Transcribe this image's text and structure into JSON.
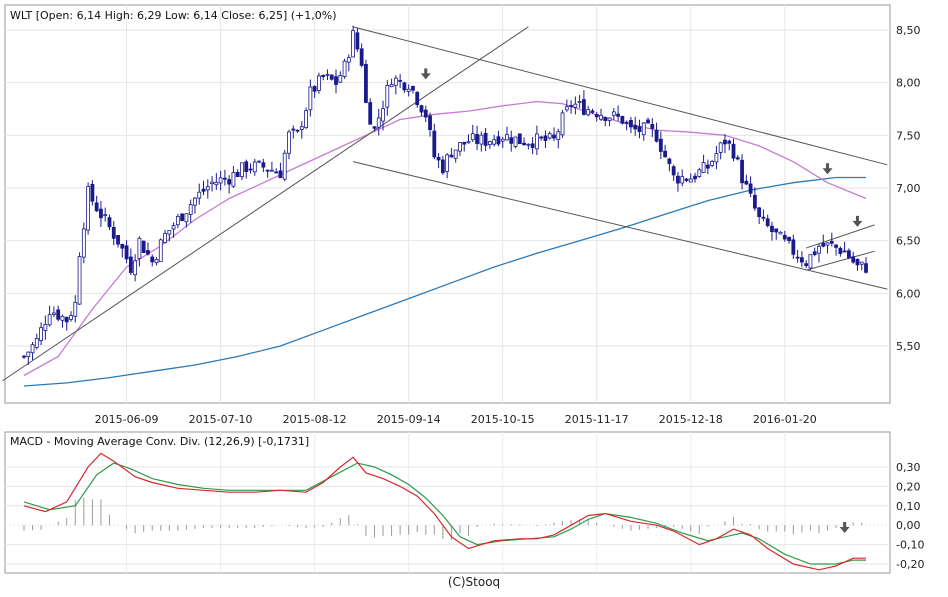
{
  "footer": "(C)Stooq",
  "chart_data": [
    {
      "type": "candlestick",
      "title": "WLT [Open: 6,14  High: 6,29  Low: 6,14  Close: 6,25] (+1,0%)",
      "ylim": [
        5.2,
        8.6
      ],
      "ytick_labels": [
        "8,50",
        "8,00",
        "7,50",
        "7,00",
        "6,50",
        "6,00",
        "5,50"
      ],
      "ytick_values": [
        8.5,
        8.0,
        7.5,
        7.0,
        6.5,
        6.0,
        5.5
      ],
      "xtick_labels": [
        "2015-06-09",
        "2015-07-10",
        "2015-08-12",
        "2015-09-14",
        "2015-10-15",
        "2015-11-17",
        "2015-12-18",
        "2016-01-20"
      ],
      "xtick_positions": [
        24,
        46,
        68,
        90,
        112,
        134,
        156,
        178
      ],
      "x_count": 198,
      "grid": true,
      "anchors": [
        [
          0,
          5.4
        ],
        [
          3,
          5.55
        ],
        [
          6,
          5.85
        ],
        [
          10,
          5.75
        ],
        [
          12,
          5.9
        ],
        [
          13,
          6.4
        ],
        [
          15,
          6.95
        ],
        [
          18,
          6.75
        ],
        [
          22,
          6.5
        ],
        [
          25,
          6.25
        ],
        [
          27,
          6.5
        ],
        [
          30,
          6.3
        ],
        [
          33,
          6.55
        ],
        [
          36,
          6.7
        ],
        [
          40,
          6.9
        ],
        [
          44,
          7.05
        ],
        [
          48,
          7.1
        ],
        [
          52,
          7.2
        ],
        [
          56,
          7.2
        ],
        [
          60,
          7.15
        ],
        [
          62,
          7.5
        ],
        [
          64,
          7.5
        ],
        [
          67,
          7.9
        ],
        [
          70,
          8.05
        ],
        [
          73,
          8.0
        ],
        [
          75,
          8.15
        ],
        [
          77,
          8.45
        ],
        [
          79,
          8.2
        ],
        [
          80,
          7.8
        ],
        [
          82,
          7.55
        ],
        [
          84,
          7.8
        ],
        [
          86,
          8.05
        ],
        [
          88,
          8.0
        ],
        [
          90,
          8.0
        ],
        [
          92,
          7.85
        ],
        [
          94,
          7.7
        ],
        [
          96,
          7.3
        ],
        [
          98,
          7.2
        ],
        [
          100,
          7.35
        ],
        [
          104,
          7.45
        ],
        [
          108,
          7.45
        ],
        [
          112,
          7.5
        ],
        [
          116,
          7.45
        ],
        [
          120,
          7.45
        ],
        [
          124,
          7.45
        ],
        [
          126,
          7.65
        ],
        [
          128,
          7.8
        ],
        [
          132,
          7.75
        ],
        [
          136,
          7.7
        ],
        [
          140,
          7.65
        ],
        [
          142,
          7.55
        ],
        [
          146,
          7.55
        ],
        [
          148,
          7.5
        ],
        [
          150,
          7.3
        ],
        [
          152,
          7.1
        ],
        [
          156,
          7.1
        ],
        [
          160,
          7.2
        ],
        [
          164,
          7.45
        ],
        [
          166,
          7.35
        ],
        [
          168,
          7.1
        ],
        [
          170,
          6.9
        ],
        [
          172,
          6.7
        ],
        [
          176,
          6.55
        ],
        [
          180,
          6.4
        ],
        [
          183,
          6.3
        ],
        [
          186,
          6.45
        ],
        [
          189,
          6.45
        ],
        [
          192,
          6.4
        ],
        [
          195,
          6.25
        ],
        [
          197,
          6.25
        ]
      ],
      "ma_short": [
        [
          0,
          5.22
        ],
        [
          8,
          5.4
        ],
        [
          16,
          5.85
        ],
        [
          24,
          6.25
        ],
        [
          32,
          6.45
        ],
        [
          40,
          6.7
        ],
        [
          48,
          6.9
        ],
        [
          56,
          7.05
        ],
        [
          64,
          7.2
        ],
        [
          72,
          7.35
        ],
        [
          80,
          7.5
        ],
        [
          88,
          7.65
        ],
        [
          96,
          7.7
        ],
        [
          104,
          7.73
        ],
        [
          112,
          7.78
        ],
        [
          120,
          7.82
        ],
        [
          126,
          7.8
        ],
        [
          132,
          7.72
        ],
        [
          140,
          7.62
        ],
        [
          148,
          7.55
        ],
        [
          156,
          7.53
        ],
        [
          164,
          7.5
        ],
        [
          172,
          7.4
        ],
        [
          180,
          7.25
        ],
        [
          188,
          7.05
        ],
        [
          197,
          6.9
        ]
      ],
      "ma_long": [
        [
          0,
          5.12
        ],
        [
          10,
          5.15
        ],
        [
          20,
          5.2
        ],
        [
          30,
          5.26
        ],
        [
          40,
          5.32
        ],
        [
          50,
          5.4
        ],
        [
          60,
          5.5
        ],
        [
          70,
          5.65
        ],
        [
          80,
          5.8
        ],
        [
          90,
          5.95
        ],
        [
          100,
          6.1
        ],
        [
          110,
          6.25
        ],
        [
          120,
          6.38
        ],
        [
          130,
          6.5
        ],
        [
          140,
          6.62
        ],
        [
          150,
          6.75
        ],
        [
          160,
          6.88
        ],
        [
          170,
          6.98
        ],
        [
          180,
          7.05
        ],
        [
          190,
          7.1
        ],
        [
          197,
          7.1
        ]
      ],
      "trendlines": [
        {
          "from": [
            -5,
            5.17
          ],
          "to": [
            118,
            8.53
          ]
        },
        {
          "from": [
            77,
            8.53
          ],
          "to": [
            202,
            7.22
          ]
        },
        {
          "from": [
            77,
            7.25
          ],
          "to": [
            202,
            6.04
          ]
        },
        {
          "from": [
            183,
            6.22
          ],
          "to": [
            199,
            6.4
          ]
        },
        {
          "from": [
            183,
            6.43
          ],
          "to": [
            199,
            6.65
          ]
        }
      ],
      "arrows": [
        [
          94,
          8.05
        ],
        [
          188,
          7.15
        ],
        [
          195,
          6.65
        ]
      ]
    },
    {
      "type": "line",
      "title": "MACD - Moving Average Conv. Div. (12,26,9) [-0,1731]",
      "ylim": [
        -0.25,
        0.37
      ],
      "ytick_labels": [
        "0,30",
        "0,20",
        "0,10",
        "0,00",
        "-0,10",
        "-0,20"
      ],
      "ytick_values": [
        0.3,
        0.2,
        0.1,
        0.0,
        -0.1,
        -0.2
      ],
      "grid": true,
      "series": [
        {
          "color": "#d9282c",
          "points": [
            [
              0,
              0.1
            ],
            [
              5,
              0.07
            ],
            [
              10,
              0.12
            ],
            [
              15,
              0.3
            ],
            [
              18,
              0.37
            ],
            [
              21,
              0.33
            ],
            [
              26,
              0.25
            ],
            [
              30,
              0.22
            ],
            [
              36,
              0.19
            ],
            [
              42,
              0.18
            ],
            [
              48,
              0.17
            ],
            [
              54,
              0.17
            ],
            [
              60,
              0.18
            ],
            [
              66,
              0.17
            ],
            [
              70,
              0.22
            ],
            [
              74,
              0.3
            ],
            [
              77,
              0.35
            ],
            [
              80,
              0.27
            ],
            [
              84,
              0.24
            ],
            [
              88,
              0.2
            ],
            [
              92,
              0.15
            ],
            [
              96,
              0.06
            ],
            [
              100,
              -0.06
            ],
            [
              104,
              -0.12
            ],
            [
              110,
              -0.08
            ],
            [
              116,
              -0.07
            ],
            [
              120,
              -0.07
            ],
            [
              124,
              -0.05
            ],
            [
              128,
              0.0
            ],
            [
              132,
              0.05
            ],
            [
              136,
              0.06
            ],
            [
              142,
              0.02
            ],
            [
              148,
              0.0
            ],
            [
              152,
              -0.03
            ],
            [
              158,
              -0.1
            ],
            [
              162,
              -0.07
            ],
            [
              166,
              -0.02
            ],
            [
              170,
              -0.05
            ],
            [
              174,
              -0.12
            ],
            [
              180,
              -0.2
            ],
            [
              186,
              -0.23
            ],
            [
              190,
              -0.21
            ],
            [
              194,
              -0.17
            ],
            [
              197,
              -0.17
            ]
          ]
        },
        {
          "color": "#2e9a4a",
          "points": [
            [
              0,
              0.12
            ],
            [
              6,
              0.08
            ],
            [
              12,
              0.1
            ],
            [
              17,
              0.26
            ],
            [
              21,
              0.32
            ],
            [
              25,
              0.29
            ],
            [
              30,
              0.24
            ],
            [
              36,
              0.21
            ],
            [
              42,
              0.19
            ],
            [
              48,
              0.18
            ],
            [
              54,
              0.18
            ],
            [
              60,
              0.18
            ],
            [
              66,
              0.18
            ],
            [
              72,
              0.25
            ],
            [
              78,
              0.32
            ],
            [
              82,
              0.3
            ],
            [
              86,
              0.26
            ],
            [
              90,
              0.21
            ],
            [
              94,
              0.14
            ],
            [
              98,
              0.05
            ],
            [
              102,
              -0.06
            ],
            [
              106,
              -0.1
            ],
            [
              112,
              -0.08
            ],
            [
              118,
              -0.07
            ],
            [
              124,
              -0.06
            ],
            [
              128,
              -0.02
            ],
            [
              132,
              0.03
            ],
            [
              136,
              0.06
            ],
            [
              142,
              0.04
            ],
            [
              148,
              0.01
            ],
            [
              154,
              -0.04
            ],
            [
              160,
              -0.08
            ],
            [
              164,
              -0.06
            ],
            [
              168,
              -0.04
            ],
            [
              172,
              -0.07
            ],
            [
              178,
              -0.15
            ],
            [
              184,
              -0.2
            ],
            [
              190,
              -0.2
            ],
            [
              194,
              -0.18
            ],
            [
              197,
              -0.18
            ]
          ]
        }
      ],
      "hist_color": "#9a9a9a",
      "arrows": [
        [
          192,
          -0.03
        ]
      ]
    }
  ]
}
